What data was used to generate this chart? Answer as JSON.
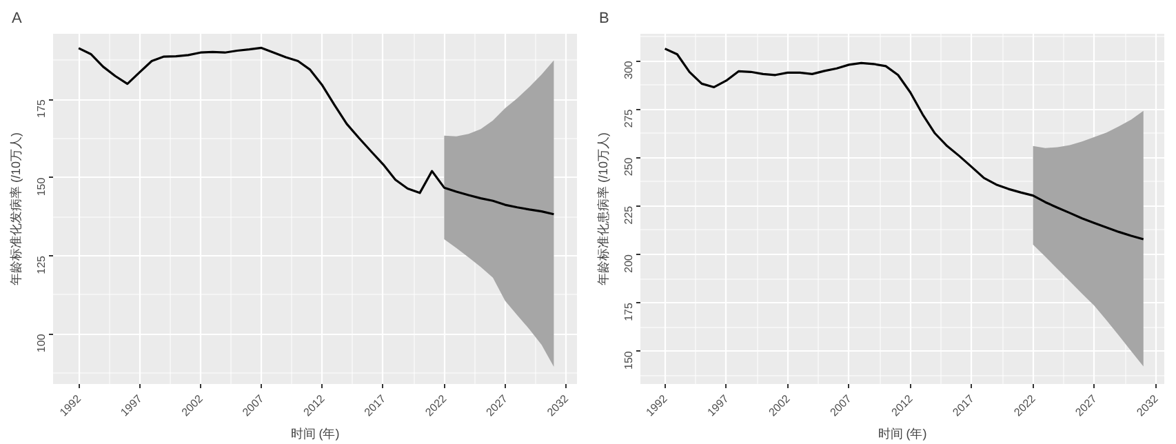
{
  "chart_data": [
    {
      "type": "line",
      "title": "A",
      "xlabel": "时间 (年)",
      "ylabel": "年龄标准化发病率 (/10万人)",
      "x": [
        1992,
        1993,
        1994,
        1995,
        1996,
        1997,
        1998,
        1999,
        2000,
        2001,
        2002,
        2003,
        2004,
        2005,
        2006,
        2007,
        2008,
        2009,
        2010,
        2011,
        2012,
        2013,
        2014,
        2015,
        2016,
        2017,
        2018,
        2019,
        2020,
        2021,
        2022,
        2023,
        2024,
        2025,
        2026,
        2027,
        2028,
        2029,
        2030,
        2031
      ],
      "series": [
        {
          "color": "#000000",
          "values": [
            191.4,
            189.5,
            185.5,
            182.5,
            180.0,
            183.7,
            187.3,
            188.7,
            188.8,
            189.2,
            190.0,
            190.2,
            190.0,
            190.6,
            191.0,
            191.5,
            190.0,
            188.5,
            187.3,
            184.5,
            179.5,
            173.2,
            167.2,
            162.7,
            158.4,
            154.2,
            149.3,
            146.5,
            145.1,
            152.1,
            146.8,
            145.5,
            144.4,
            143.4,
            142.6,
            141.3,
            140.5,
            139.8,
            139.2,
            138.3
          ],
          "lower": [
            null,
            null,
            null,
            null,
            null,
            null,
            null,
            null,
            null,
            null,
            null,
            null,
            null,
            null,
            null,
            null,
            null,
            null,
            null,
            null,
            null,
            null,
            null,
            null,
            null,
            null,
            null,
            null,
            null,
            null,
            130.3,
            127.5,
            124.5,
            121.4,
            118.0,
            110.6,
            106.0,
            101.5,
            96.5,
            89.5
          ],
          "upper": [
            null,
            null,
            null,
            null,
            null,
            null,
            null,
            null,
            null,
            null,
            null,
            null,
            null,
            null,
            null,
            null,
            null,
            null,
            null,
            null,
            null,
            null,
            null,
            null,
            null,
            null,
            null,
            null,
            null,
            null,
            163.4,
            163.2,
            164.0,
            165.5,
            168.3,
            172.2,
            175.4,
            179.0,
            183.0,
            187.5
          ]
        }
      ],
      "xlim": [
        1989.9,
        2032.9
      ],
      "ylim": [
        84,
        196
      ],
      "xticks": [
        1992,
        1997,
        2002,
        2007,
        2012,
        2017,
        2022,
        2027,
        2032
      ],
      "yticks": [
        100,
        125,
        150,
        175
      ],
      "grid": true
    },
    {
      "type": "line",
      "title": "B",
      "xlabel": "时间 (年)",
      "ylabel": "年龄标准化患病率 (/10万人)",
      "x": [
        1992,
        1993,
        1994,
        1995,
        1996,
        1997,
        1998,
        1999,
        2000,
        2001,
        2002,
        2003,
        2004,
        2005,
        2006,
        2007,
        2008,
        2009,
        2010,
        2011,
        2012,
        2013,
        2014,
        2015,
        2016,
        2017,
        2018,
        2019,
        2020,
        2021,
        2022,
        2023,
        2024,
        2025,
        2026,
        2027,
        2028,
        2029,
        2030,
        2031
      ],
      "series": [
        {
          "color": "#000000",
          "values": [
            306.3,
            303.4,
            294.3,
            288.2,
            286.4,
            289.8,
            294.6,
            294.3,
            293.2,
            292.7,
            293.9,
            293.9,
            293.2,
            294.8,
            296.1,
            298.0,
            298.9,
            298.4,
            297.3,
            292.7,
            283.7,
            272.4,
            262.6,
            256.0,
            250.8,
            245.2,
            239.5,
            236.1,
            233.8,
            232.0,
            230.4,
            227.0,
            224.1,
            221.4,
            218.6,
            216.2,
            213.9,
            211.6,
            209.6,
            207.8
          ],
          "lower": [
            null,
            null,
            null,
            null,
            null,
            null,
            null,
            null,
            null,
            null,
            null,
            null,
            null,
            null,
            null,
            null,
            null,
            null,
            null,
            null,
            null,
            null,
            null,
            null,
            null,
            null,
            null,
            null,
            null,
            null,
            205.1,
            198.8,
            192.4,
            186.1,
            179.7,
            173.4,
            165.9,
            158.0,
            150.0,
            142.1
          ],
          "upper": [
            null,
            null,
            null,
            null,
            null,
            null,
            null,
            null,
            null,
            null,
            null,
            null,
            null,
            null,
            null,
            null,
            null,
            null,
            null,
            null,
            null,
            null,
            null,
            null,
            null,
            null,
            null,
            null,
            null,
            null,
            256.0,
            254.9,
            255.4,
            256.5,
            258.3,
            260.6,
            263.0,
            266.2,
            269.6,
            274.2
          ]
        }
      ],
      "xlim": [
        1990.0,
        2032.7
      ],
      "ylim": [
        133,
        314
      ],
      "xticks": [
        1992,
        1997,
        2002,
        2007,
        2012,
        2017,
        2022,
        2027,
        2032
      ],
      "yticks": [
        150,
        175,
        200,
        225,
        250,
        275,
        300
      ],
      "grid": true
    }
  ]
}
